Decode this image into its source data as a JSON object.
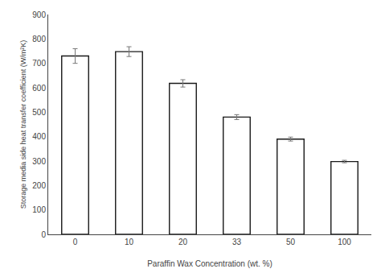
{
  "chart_data": {
    "type": "bar",
    "categories": [
      "0",
      "10",
      "20",
      "33",
      "50",
      "100"
    ],
    "values": [
      730,
      748,
      618,
      480,
      390,
      298
    ],
    "errors": [
      30,
      20,
      15,
      10,
      8,
      5
    ],
    "color": "#ffffff",
    "xlabel": "Paraffin Wax Concentration (wt. %)",
    "ylabel": "Storage media side heat transfer coefficient (W/m²K)",
    "ylim": [
      0,
      900
    ],
    "yticks": [
      0,
      100,
      200,
      300,
      400,
      500,
      600,
      700,
      800,
      900
    ],
    "grid": false
  }
}
